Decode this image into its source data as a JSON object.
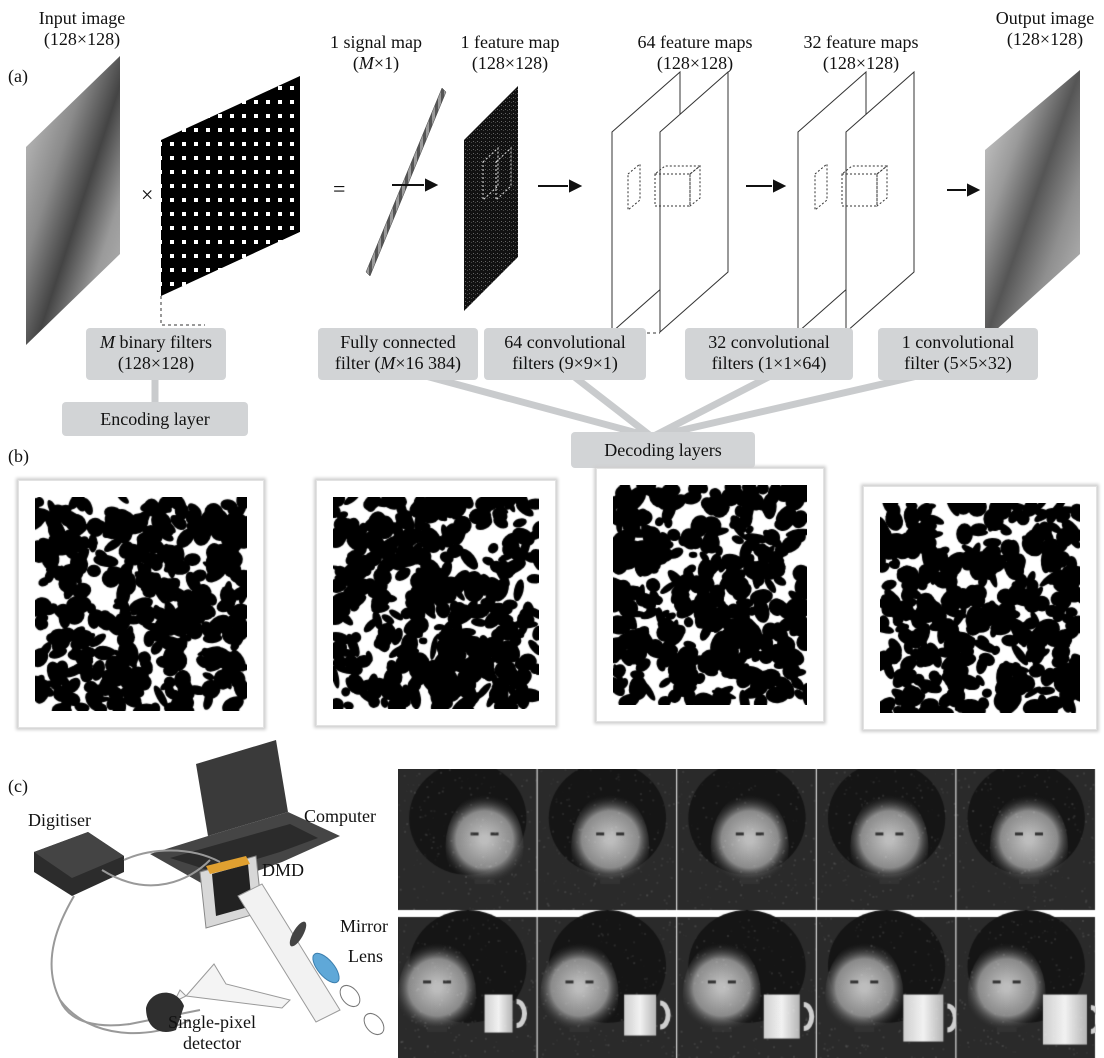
{
  "panel_a": {
    "letter": "(a)",
    "input_label": [
      "Input image",
      "(128×128)"
    ],
    "signal_label": [
      "1 signal map",
      "(",
      "M",
      "×1)"
    ],
    "feature1_label": [
      "1 feature map",
      "(128×128)"
    ],
    "feature64_label": [
      "64 feature maps",
      "(128×128)"
    ],
    "feature32_label": [
      "32 feature maps",
      "(128×128)"
    ],
    "output_label": [
      "Output image",
      "(128×128)"
    ],
    "times_symbol": "×",
    "equals_symbol": "=",
    "box_binary": [
      "M",
      " binary filters",
      "(128×128)"
    ],
    "box_fc": [
      "Fully connected",
      "filter (",
      "M",
      "×16 384)"
    ],
    "box_conv64": [
      "64 convolutional",
      "filters (9×9×1)"
    ],
    "box_conv32": [
      "32 convolutional",
      "filters (1×1×64)"
    ],
    "box_conv1": [
      "1 convolutional",
      "filter (5×5×32)"
    ],
    "encoding_layer": "Encoding layer",
    "decoding_layers": "Decoding layers"
  },
  "panel_b": {
    "letter": "(b)",
    "pattern_count": 4
  },
  "panel_c": {
    "letter": "(c)",
    "computer": "Computer",
    "digitiser": "Digitiser",
    "dmd": "DMD",
    "mirror": "Mirror",
    "lens": "Lens",
    "detector": [
      "Single-pixel",
      "detector"
    ]
  },
  "colors": {
    "box_fill": "#d2d4d6",
    "lens_blue": "#5fa8d8",
    "dmd_orange": "#e0a030"
  }
}
